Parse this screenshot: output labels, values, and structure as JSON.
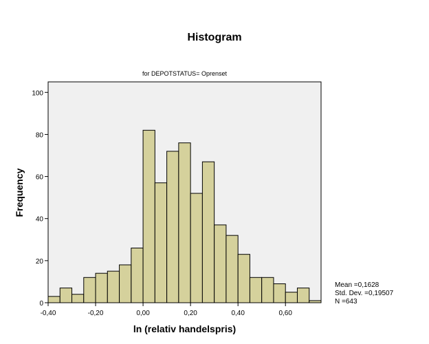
{
  "chart_data": {
    "type": "bar",
    "title": "Histogram",
    "subtitle": "for DEPOTSTATUS= Oprenset",
    "xlabel": "ln (relativ handelspris)",
    "ylabel": "Frequency",
    "bin_width": 0.05,
    "bin_starts": [
      -0.4,
      -0.35,
      -0.3,
      -0.25,
      -0.2,
      -0.15,
      -0.1,
      -0.05,
      0.0,
      0.05,
      0.1,
      0.15,
      0.2,
      0.25,
      0.3,
      0.35,
      0.4,
      0.45,
      0.5,
      0.55,
      0.6,
      0.65,
      0.7
    ],
    "values": [
      3,
      7,
      4,
      12,
      14,
      15,
      18,
      26,
      82,
      57,
      72,
      76,
      52,
      67,
      37,
      32,
      23,
      12,
      12,
      9,
      5,
      7,
      1
    ],
    "xlim": [
      -0.4,
      0.75
    ],
    "ylim": [
      0,
      105
    ],
    "x_ticks": [
      -0.4,
      -0.2,
      0.0,
      0.2,
      0.4,
      0.6
    ],
    "x_tick_labels": [
      "-0,40",
      "-0,20",
      "0,00",
      "0,20",
      "0,40",
      "0,60"
    ],
    "y_ticks": [
      0,
      20,
      40,
      60,
      80,
      100
    ],
    "y_tick_labels": [
      "0",
      "20",
      "40",
      "60",
      "80",
      "100"
    ],
    "grid": false,
    "colors": {
      "bar_fill": "#d5d19c",
      "bar_stroke": "#000000",
      "plot_bg": "#f0f0f0"
    }
  },
  "stats": {
    "mean": "Mean =0,1628",
    "std": "Std. Dev. =0,19507",
    "n": "N =643"
  }
}
